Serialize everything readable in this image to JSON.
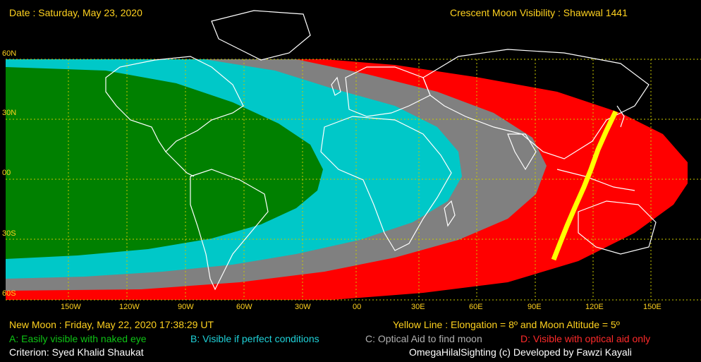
{
  "header": {
    "date_line": "Date : Saturday, May 23, 2020",
    "title_line": "Crescent Moon Visibility : Shawwal  1441"
  },
  "axes": {
    "latitude_labels": [
      "60N",
      "30N",
      "00",
      "30S",
      "60S"
    ],
    "longitude_labels": [
      "150W",
      "120W",
      "90W",
      "60W",
      "30W",
      "00",
      "30E",
      "60E",
      "90E",
      "120E",
      "150E"
    ]
  },
  "footer": {
    "new_moon": "New Moon : Friday, May 22, 2020  17:38:29  UT",
    "yellow_line": "Yellow Line : Elongation = 8º  and Moon Altitude = 5º",
    "legend": [
      {
        "code": "A",
        "label": "A: Easily visible with naked eye",
        "color": "#0ec415"
      },
      {
        "code": "B",
        "label": "B: Visible if perfect conditions",
        "color": "#1fd2d9"
      },
      {
        "code": "C",
        "label": "C: Optical Aid to find moon",
        "color": "#b0b0b0"
      },
      {
        "code": "D",
        "label": "D: Visible with optical aid only",
        "color": "#ff2a2a"
      }
    ],
    "criterion": "Criterion: Syed Khalid Shaukat",
    "credit": "OmegaHilalSighting  (c)  Developed by Fawzi Kayali"
  },
  "colors": {
    "zone_a": "#008000",
    "zone_b": "#00c8c8",
    "zone_c": "#808080",
    "zone_d": "#ff0000",
    "yellow_line": "#ffff00",
    "label": "#ffd21f",
    "grid": "#c8c800"
  }
}
